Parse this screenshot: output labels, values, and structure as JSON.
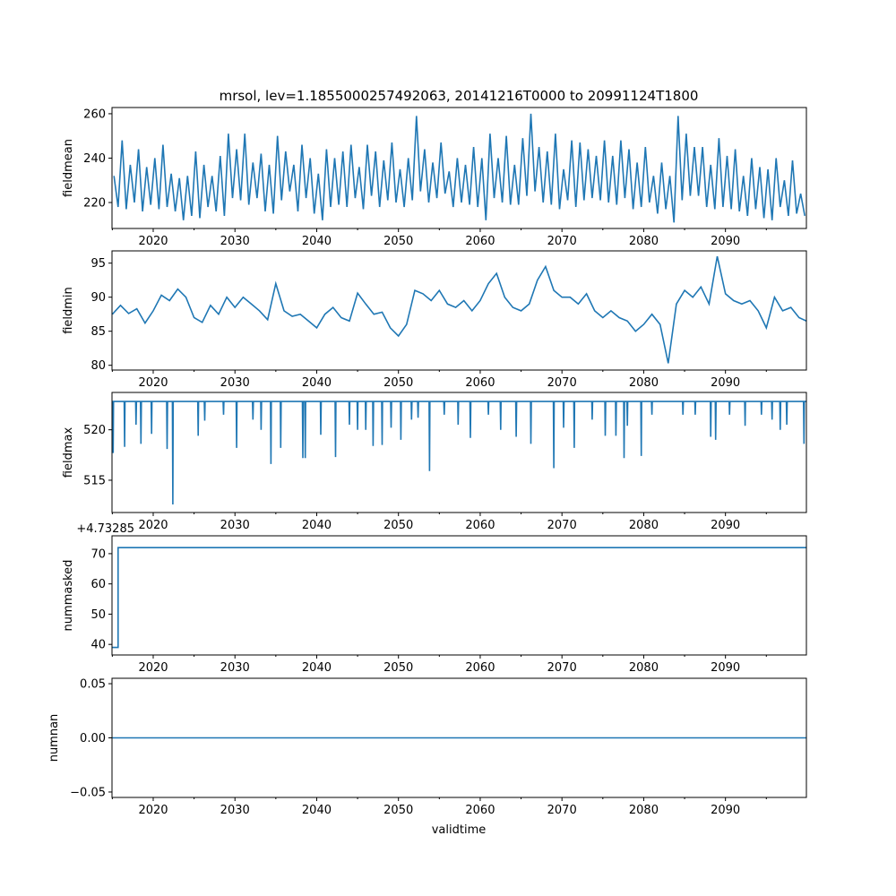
{
  "chart_data": {
    "type": "line",
    "title": "mrsol, lev=1.1855000257492063, 20141216T0000 to 20991124T1800",
    "xlabel": "validtime",
    "xlim": [
      2014.96,
      2099.9
    ],
    "x_ticks": [
      2020,
      2030,
      2040,
      2050,
      2060,
      2070,
      2080,
      2090
    ],
    "x_minor_ticks": [
      2015,
      2025,
      2035,
      2045,
      2055,
      2065,
      2075,
      2085,
      2095
    ],
    "color": "#1f77b4",
    "panels": [
      {
        "ylabel": "fieldmean",
        "ylim": [
          208.3,
          262.8
        ],
        "y_ticks": [
          "220",
          "240",
          "260"
        ],
        "y_tick_values": [
          220,
          240,
          260
        ],
        "series_kind": "peak_trough_per_year",
        "x_start": 2015,
        "values": [
          232,
          218,
          248,
          217,
          237,
          220,
          244,
          216,
          236,
          219,
          240,
          217,
          246,
          218,
          233,
          216,
          231,
          212,
          232,
          214,
          243,
          213,
          237,
          218,
          232,
          216,
          241,
          214,
          251,
          222,
          244,
          221,
          251,
          219,
          238,
          222,
          242,
          216,
          237,
          215,
          250,
          221,
          243,
          225,
          237,
          216,
          246,
          222,
          240,
          215,
          233,
          212,
          244,
          218,
          240,
          219,
          243,
          218,
          246,
          222,
          236,
          217,
          246,
          223,
          243,
          218,
          239,
          221,
          247,
          220,
          235,
          218,
          240,
          221,
          259,
          225,
          244,
          220,
          238,
          222,
          247,
          224,
          234,
          218,
          240,
          220,
          237,
          219,
          245,
          218,
          240,
          212,
          251,
          222,
          240,
          220,
          250,
          219,
          237,
          219,
          249,
          223,
          260,
          225,
          245,
          220,
          243,
          219,
          251,
          217,
          235,
          221,
          248,
          218,
          247,
          221,
          244,
          222,
          241,
          221,
          248,
          220,
          241,
          219,
          248,
          222,
          244,
          217,
          238,
          218,
          245,
          220,
          232,
          215,
          238,
          217,
          232,
          211,
          259,
          221,
          251,
          223,
          245,
          223,
          245,
          218,
          237,
          217,
          249,
          218,
          241,
          217,
          244,
          216,
          232,
          214,
          240,
          217,
          236,
          213,
          235,
          212,
          240,
          218,
          230,
          214,
          239,
          215,
          224,
          214
        ]
      },
      {
        "ylabel": "fieldmin",
        "ylim": [
          79.3,
          96.8
        ],
        "y_ticks": [
          "80",
          "85",
          "90",
          "95"
        ],
        "y_tick_values": [
          80,
          85,
          90,
          95
        ],
        "series_kind": "yearly",
        "x_start": 2015,
        "values": [
          87.5,
          88.8,
          87.6,
          88.3,
          86.2,
          88,
          90.3,
          89.5,
          91.2,
          90,
          87,
          86.3,
          88.8,
          87.5,
          90,
          88.5,
          90,
          89,
          88,
          86.7,
          92,
          88,
          87.2,
          87.5,
          86.5,
          85.5,
          87.5,
          88.5,
          87,
          86.5,
          90.6,
          89,
          87.5,
          87.8,
          85.5,
          84.3,
          86,
          91,
          90.5,
          89.5,
          91,
          89,
          88.5,
          89.5,
          88,
          89.5,
          92,
          93.5,
          90,
          88.5,
          88,
          89,
          92.5,
          94.5,
          91,
          90,
          90,
          89,
          90.5,
          88,
          87,
          88,
          87,
          86.5,
          85,
          86,
          87.5,
          86,
          80.3,
          89,
          91,
          90,
          91.5,
          89,
          96,
          90.5,
          89.5,
          89,
          89.5,
          88,
          85.5,
          90,
          88,
          88.5,
          87,
          86.5
        ]
      },
      {
        "ylabel": "fieldmax",
        "ylim": [
          511.8,
          523.7
        ],
        "y_ticks": [
          "515",
          "520"
        ],
        "y_tick_values": [
          515,
          520
        ],
        "series_kind": "baseline_with_dips",
        "baseline": 522.8,
        "dips": [
          [
            2015.1,
            517.7
          ],
          [
            2016.5,
            518.3
          ],
          [
            2017.9,
            520.5
          ],
          [
            2018.5,
            518.6
          ],
          [
            2019.8,
            519.6
          ],
          [
            2021.7,
            518.1
          ],
          [
            2022.4,
            512.6
          ],
          [
            2025.5,
            519.4
          ],
          [
            2026.3,
            520.9
          ],
          [
            2028.6,
            521.5
          ],
          [
            2030.2,
            518.2
          ],
          [
            2032.2,
            521
          ],
          [
            2033.2,
            520
          ],
          [
            2034.4,
            516.6
          ],
          [
            2035.6,
            518.2
          ],
          [
            2038.3,
            517.2
          ],
          [
            2038.6,
            517.2
          ],
          [
            2040.5,
            519.5
          ],
          [
            2042.3,
            517.3
          ],
          [
            2044.0,
            520.5
          ],
          [
            2045.0,
            520
          ],
          [
            2046.0,
            520
          ],
          [
            2046.9,
            518.4
          ],
          [
            2048.0,
            518.5
          ],
          [
            2049.1,
            520.2
          ],
          [
            2050.3,
            519
          ],
          [
            2051.6,
            521
          ],
          [
            2052.4,
            521.2
          ],
          [
            2053.8,
            515.9
          ],
          [
            2055.6,
            521.5
          ],
          [
            2057.3,
            520.5
          ],
          [
            2058.8,
            519.2
          ],
          [
            2061.0,
            521.5
          ],
          [
            2062.5,
            520
          ],
          [
            2064.4,
            519.3
          ],
          [
            2066.2,
            518.6
          ],
          [
            2069.0,
            516.2
          ],
          [
            2070.2,
            520.2
          ],
          [
            2071.5,
            518.2
          ],
          [
            2073.7,
            521
          ],
          [
            2075.3,
            519.4
          ],
          [
            2076.6,
            519.4
          ],
          [
            2077.6,
            517.2
          ],
          [
            2078.0,
            520.4
          ],
          [
            2079.7,
            517.4
          ],
          [
            2081.0,
            521.5
          ],
          [
            2084.8,
            521.5
          ],
          [
            2086.3,
            521.5
          ],
          [
            2088.2,
            519.3
          ],
          [
            2088.8,
            519
          ],
          [
            2090.5,
            521.5
          ],
          [
            2092.4,
            520.4
          ],
          [
            2094.4,
            521.5
          ],
          [
            2095.7,
            521
          ],
          [
            2096.7,
            520
          ],
          [
            2097.5,
            520.5
          ],
          [
            2099.6,
            518.6
          ]
        ]
      },
      {
        "ylabel": "nummasked",
        "offset_text": "+4.73285",
        "ylim": [
          36.5,
          75.9
        ],
        "y_ticks": [
          "40",
          "50",
          "60",
          "70"
        ],
        "y_tick_values": [
          40,
          50,
          60,
          70
        ],
        "series_kind": "points",
        "points": [
          [
            2014.96,
            39
          ],
          [
            2015.7,
            39
          ],
          [
            2015.7,
            72
          ],
          [
            2099.9,
            72
          ]
        ]
      },
      {
        "ylabel": "numnan",
        "ylim": [
          -0.055,
          0.055
        ],
        "y_ticks": [
          "−0.05",
          "0.00",
          "0.05"
        ],
        "y_tick_values": [
          -0.05,
          0,
          0.05
        ],
        "series_kind": "points",
        "points": [
          [
            2014.96,
            0
          ],
          [
            2099.9,
            0
          ]
        ]
      }
    ]
  }
}
